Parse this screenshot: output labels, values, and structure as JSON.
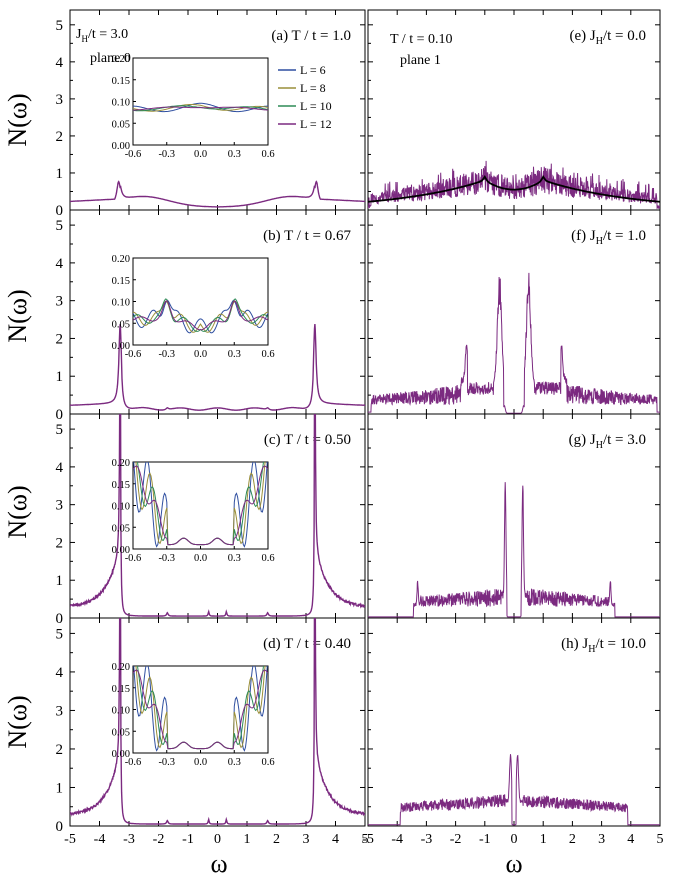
{
  "figure": {
    "ylabel": "N(ω)",
    "xlabel": "ω",
    "ann_left_top": [
      "J",
      "H",
      "/t = 3.0"
    ],
    "ann_plane0": "plane 0",
    "ann_right_top": "T / t = 0.10",
    "ann_plane1": "plane 1",
    "colors": {
      "purple": "#7b2a80",
      "black": "#000000"
    }
  },
  "chart_data": [
    {
      "type": "line",
      "panel": "(a)",
      "label": "(a)  T / t = 1.0",
      "xlim": [
        -5,
        5
      ],
      "ylim": [
        0,
        5.4
      ],
      "xticks": [
        -5,
        -4,
        -3,
        -2,
        -1,
        0,
        1,
        2,
        3,
        4,
        5
      ],
      "yticks": [
        0,
        1,
        2,
        3,
        4,
        5
      ],
      "series": [
        {
          "values_desc": "smooth DOS",
          "shape": "broad",
          "peak_w": 3.35,
          "peak_h": 0.7,
          "base": 0.08,
          "edge": 0.22
        }
      ],
      "inset": {
        "xlim": [
          -0.6,
          0.6
        ],
        "ylim": [
          0.0,
          0.2
        ],
        "xticks": [
          -0.6,
          -0.3,
          0.0,
          0.3,
          0.6
        ],
        "yticks": [
          0.0,
          0.05,
          0.1,
          0.15,
          0.2
        ],
        "ytick_labels": [
          "0.00",
          "0.05",
          "0.10",
          "0.15",
          "0.20"
        ],
        "xtick_labels": [
          "-0.6",
          "-0.3",
          "0.0",
          "0.3",
          "0.6"
        ],
        "mode": "flat",
        "legend": [
          "L = 6",
          "L = 8",
          "L = 10",
          "L = 12"
        ],
        "legend_colors": [
          "#2f4fa0",
          "#9a8f3a",
          "#2e8b57",
          "#7b2a80"
        ]
      }
    },
    {
      "type": "line",
      "panel": "(b)",
      "label": "(b)  T / t = 0.67",
      "xlim": [
        -5,
        5
      ],
      "ylim": [
        0,
        5.4
      ],
      "xticks": [
        -5,
        -4,
        -3,
        -2,
        -1,
        0,
        1,
        2,
        3,
        4,
        5
      ],
      "yticks": [
        0,
        1,
        2,
        3,
        4,
        5
      ],
      "series": [
        {
          "shape": "sharp",
          "peak_w": 3.3,
          "peak_h": 2.1,
          "base": 0.12,
          "edge": 0.25
        }
      ],
      "inset": {
        "xlim": [
          -0.6,
          0.6
        ],
        "ylim": [
          0.0,
          0.2
        ],
        "mode": "dip",
        "xticks": [
          -0.6,
          -0.3,
          0.0,
          0.3,
          0.6
        ],
        "yticks": [
          0.0,
          0.05,
          0.1,
          0.15,
          0.2
        ],
        "ytick_labels": [
          "0.00",
          "0.05",
          "0.10",
          "0.15",
          "0.20"
        ],
        "xtick_labels": [
          "-0.6",
          "-0.3",
          "0.0",
          "0.3",
          "0.6"
        ],
        "legend_colors": [
          "#2f4fa0",
          "#9a8f3a",
          "#2e8b57",
          "#7b2a80"
        ]
      }
    },
    {
      "type": "line",
      "panel": "(c)",
      "label": "(c)  T / t = 0.50",
      "xlim": [
        -5,
        5
      ],
      "ylim": [
        0,
        5.4
      ],
      "xticks": [
        -5,
        -4,
        -3,
        -2,
        -1,
        0,
        1,
        2,
        3,
        4,
        5
      ],
      "yticks": [
        0,
        1,
        2,
        3,
        4,
        5
      ],
      "series": [
        {
          "shape": "spike",
          "peak_w": 3.3,
          "peak_h": 5.4,
          "base": 0.05,
          "edge": 0.28
        }
      ],
      "inset": {
        "xlim": [
          -0.6,
          0.6
        ],
        "ylim": [
          0.0,
          0.2
        ],
        "mode": "gap",
        "xticks": [
          -0.6,
          -0.3,
          0.0,
          0.3,
          0.6
        ],
        "yticks": [
          0.0,
          0.05,
          0.1,
          0.15,
          0.2
        ],
        "ytick_labels": [
          "0.00",
          "0.05",
          "0.10",
          "0.15",
          "0.20"
        ],
        "xtick_labels": [
          "-0.6",
          "-0.3",
          "0.0",
          "0.3",
          "0.6"
        ],
        "legend_colors": [
          "#2f4fa0",
          "#9a8f3a",
          "#2e8b57",
          "#7b2a80"
        ]
      }
    },
    {
      "type": "line",
      "panel": "(d)",
      "label": "(d)  T / t = 0.40",
      "xlim": [
        -5,
        5
      ],
      "ylim": [
        0,
        5.4
      ],
      "xticks": [
        -5,
        -4,
        -3,
        -2,
        -1,
        0,
        1,
        2,
        3,
        4,
        5
      ],
      "yticks": [
        0,
        1,
        2,
        3,
        4,
        5
      ],
      "series": [
        {
          "shape": "spike",
          "peak_w": 3.3,
          "peak_h": 5.4,
          "base": 0.05,
          "edge": 0.3
        }
      ],
      "inset": {
        "xlim": [
          -0.6,
          0.6
        ],
        "ylim": [
          0.0,
          0.2
        ],
        "mode": "gap",
        "xticks": [
          -0.6,
          -0.3,
          0.0,
          0.3,
          0.6
        ],
        "yticks": [
          0.0,
          0.05,
          0.1,
          0.15,
          0.2
        ],
        "ytick_labels": [
          "0.00",
          "0.05",
          "0.10",
          "0.15",
          "0.20"
        ],
        "xtick_labels": [
          "-0.6",
          "-0.3",
          "0.0",
          "0.3",
          "0.6"
        ],
        "legend_colors": [
          "#2f4fa0",
          "#9a8f3a",
          "#2e8b57",
          "#7b2a80"
        ]
      }
    },
    {
      "type": "line",
      "panel": "(e)",
      "label": "(e)  J_H/t = 0.0",
      "xlim": [
        -5,
        5
      ],
      "ylim": [
        0,
        5.4
      ],
      "xticks": [
        -5,
        -4,
        -3,
        -2,
        -1,
        0,
        1,
        2,
        3,
        4,
        5
      ],
      "yticks": [
        0,
        1,
        2,
        3,
        4,
        5
      ],
      "series": [
        {
          "shape": "noisy_broad",
          "peak_w": 1.0,
          "peak_h": 0.85
        }
      ]
    },
    {
      "type": "line",
      "panel": "(f)",
      "label": "(f)  J_H/t = 1.0",
      "xlim": [
        -5,
        5
      ],
      "ylim": [
        0,
        5.4
      ],
      "xticks": [
        -5,
        -4,
        -3,
        -2,
        -1,
        0,
        1,
        2,
        3,
        4,
        5
      ],
      "yticks": [
        0,
        1,
        2,
        3,
        4,
        5
      ],
      "series": [
        {
          "shape": "jh1",
          "peaks": [
            0.5,
            1.6
          ],
          "heights": [
            3.4,
            1.0
          ]
        }
      ]
    },
    {
      "type": "line",
      "panel": "(g)",
      "label": "(g)  J_H/t = 3.0",
      "xlim": [
        -5,
        5
      ],
      "ylim": [
        0,
        5.4
      ],
      "xticks": [
        -5,
        -4,
        -3,
        -2,
        -1,
        0,
        1,
        2,
        3,
        4,
        5
      ],
      "yticks": [
        0,
        1,
        2,
        3,
        4,
        5
      ],
      "series": [
        {
          "shape": "jh3",
          "peaks": [
            0.3,
            3.3
          ],
          "heights": [
            3.25,
            0.9
          ]
        }
      ]
    },
    {
      "type": "line",
      "panel": "(h)",
      "label": "(h)  J_H/t = 10.0",
      "xlim": [
        -5,
        5
      ],
      "ylim": [
        0,
        5.4
      ],
      "xticks": [
        -5,
        -4,
        -3,
        -2,
        -1,
        0,
        1,
        2,
        3,
        4,
        5
      ],
      "yticks": [
        0,
        1,
        2,
        3,
        4,
        5
      ],
      "series": [
        {
          "shape": "jh10",
          "peaks": [
            0.12
          ],
          "heights": [
            1.85
          ],
          "band": 3.9
        }
      ]
    }
  ]
}
